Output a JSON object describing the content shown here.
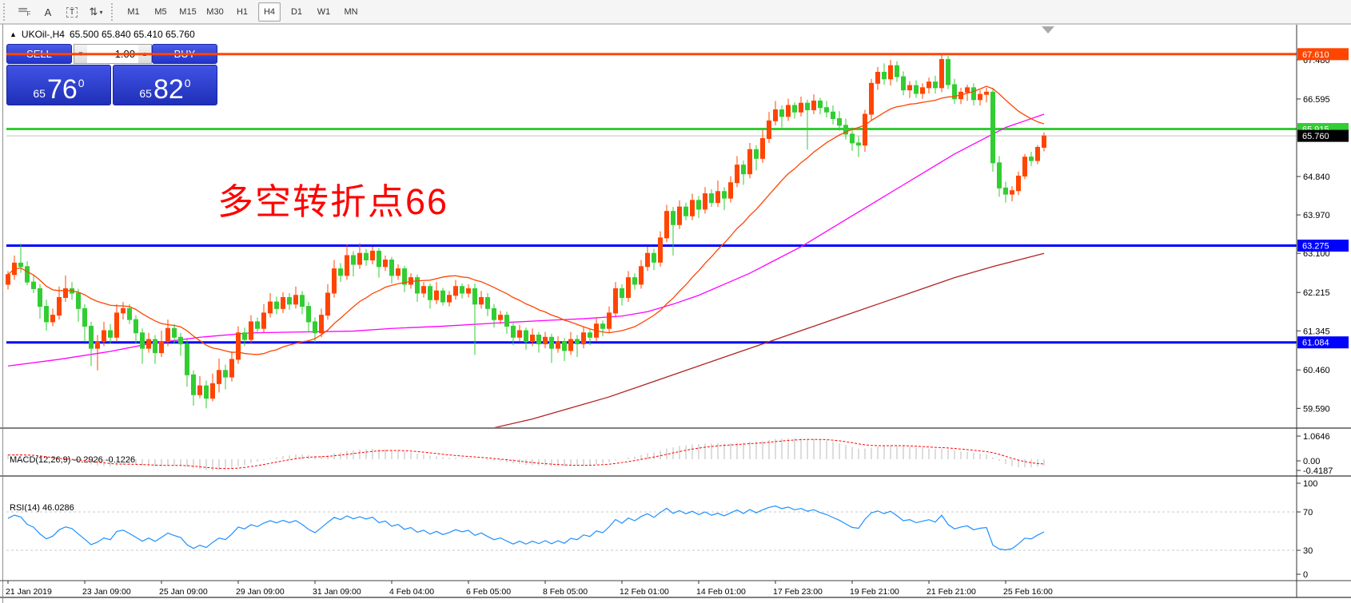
{
  "toolbar": {
    "tools": [
      {
        "name": "fibonacci-retracement",
        "glyph": "F"
      },
      {
        "name": "text-annotation",
        "glyph": "A"
      },
      {
        "name": "text-label",
        "glyph": "T"
      },
      {
        "name": "arrow-objects",
        "glyph": "⇅",
        "caret": "▾"
      }
    ],
    "timeframes": [
      "M1",
      "M5",
      "M15",
      "M30",
      "H1",
      "H4",
      "D1",
      "W1",
      "MN"
    ],
    "active_timeframe": "H4"
  },
  "chart": {
    "collapse_arrow": "▲",
    "symbol_period": "UKOil-,H4",
    "ohlc_readout": "65.500 65.840 65.410 65.760"
  },
  "trade_panel": {
    "sell_label": "SELL",
    "buy_label": "BUY",
    "volume": "1.00",
    "spin_down": "▼",
    "spin_up": "▲",
    "sell_price": {
      "prefix": "65",
      "pips": "76",
      "pipette": "0"
    },
    "buy_price": {
      "prefix": "65",
      "pips": "82",
      "pipette": "0"
    }
  },
  "annotation": {
    "text": "多空转折点66",
    "color": "#ff0000"
  },
  "macd_panel": {
    "label": "MACD(12,26,9) -0.2926 -0.1226",
    "params": "12,26,9",
    "macd_value": "-0.2926",
    "signal_value": "-0.1226",
    "axis_labels": {
      "max": "1.0646",
      "zero": "0.00",
      "min": "-0.4187"
    },
    "histogram_color": "#bbbbbb",
    "signal_color": "#ff0000"
  },
  "rsi_panel": {
    "label": "RSI(14) 46.0286",
    "period": "14",
    "value": "46.0286",
    "axis_labels": [
      "100",
      "70",
      "30",
      "0"
    ],
    "levels": [
      70,
      30
    ],
    "line_color": "#1e90ff"
  },
  "chart_data": {
    "type": "candlestick",
    "symbol": "UKOil-",
    "timeframe": "H4",
    "bull_color": "#ff4500",
    "bear_color": "#32cd32",
    "price_ticks": [
      "67.480",
      "66.595",
      "64.840",
      "63.970",
      "63.100",
      "62.215",
      "61.345",
      "60.460",
      "59.590"
    ],
    "h_lines": [
      {
        "price": 67.61,
        "label": "67.610",
        "color": "#ff4500",
        "width": 3
      },
      {
        "price": 65.915,
        "label": "65.915",
        "color": "#32cd32",
        "width": 3
      },
      {
        "price": 63.275,
        "label": "63.275",
        "color": "#0000ff",
        "width": 3
      },
      {
        "price": 61.084,
        "label": "61.084",
        "color": "#0000ff",
        "width": 3
      }
    ],
    "current_price": {
      "price": 65.76,
      "label": "65.760",
      "line_color": "#c0c0c0",
      "badge_color": "#000000"
    },
    "time_labels": [
      {
        "i": 0,
        "t": "21 Jan 2019"
      },
      {
        "i": 12,
        "t": "23 Jan 09:00"
      },
      {
        "i": 24,
        "t": "25 Jan 09:00"
      },
      {
        "i": 36,
        "t": "29 Jan 09:00"
      },
      {
        "i": 48,
        "t": "31 Jan 09:00"
      },
      {
        "i": 60,
        "t": "4 Feb 04:00"
      },
      {
        "i": 72,
        "t": "6 Feb 05:00"
      },
      {
        "i": 84,
        "t": "8 Feb 05:00"
      },
      {
        "i": 96,
        "t": "12 Feb 01:00"
      },
      {
        "i": 108,
        "t": "14 Feb 01:00"
      },
      {
        "i": 120,
        "t": "17 Feb 23:00"
      },
      {
        "i": 132,
        "t": "19 Feb 21:00"
      },
      {
        "i": 144,
        "t": "21 Feb 21:00"
      },
      {
        "i": 156,
        "t": "25 Feb 16:00"
      }
    ],
    "moving_averages": {
      "fast": {
        "type": "sma",
        "period": 20,
        "color": "#ff4500"
      },
      "mid": {
        "color": "#ff00ff",
        "points": [
          [
            0,
            60.55
          ],
          [
            8,
            60.7
          ],
          [
            16,
            60.88
          ],
          [
            22,
            61.05
          ],
          [
            30,
            61.2
          ],
          [
            38,
            61.3
          ],
          [
            46,
            61.32
          ],
          [
            54,
            61.34
          ],
          [
            60,
            61.4
          ],
          [
            68,
            61.45
          ],
          [
            76,
            61.52
          ],
          [
            84,
            61.58
          ],
          [
            90,
            61.62
          ],
          [
            96,
            61.68
          ],
          [
            100,
            61.78
          ],
          [
            104,
            61.95
          ],
          [
            108,
            62.15
          ],
          [
            112,
            62.4
          ],
          [
            116,
            62.65
          ],
          [
            120,
            62.95
          ],
          [
            124,
            63.25
          ],
          [
            128,
            63.6
          ],
          [
            132,
            63.95
          ],
          [
            136,
            64.3
          ],
          [
            140,
            64.65
          ],
          [
            144,
            65.0
          ],
          [
            148,
            65.35
          ],
          [
            152,
            65.65
          ],
          [
            156,
            65.95
          ],
          [
            159,
            66.1
          ],
          [
            162,
            66.25
          ]
        ]
      },
      "slow": {
        "color": "#b22222",
        "points": [
          [
            76,
            59.15
          ],
          [
            82,
            59.35
          ],
          [
            88,
            59.6
          ],
          [
            94,
            59.85
          ],
          [
            100,
            60.15
          ],
          [
            106,
            60.45
          ],
          [
            112,
            60.75
          ],
          [
            118,
            61.05
          ],
          [
            124,
            61.35
          ],
          [
            130,
            61.65
          ],
          [
            136,
            61.95
          ],
          [
            142,
            62.25
          ],
          [
            148,
            62.55
          ],
          [
            154,
            62.8
          ],
          [
            158,
            62.95
          ],
          [
            162,
            63.1
          ]
        ]
      }
    },
    "candles": [
      [
        62.4,
        62.7,
        62.28,
        62.62
      ],
      [
        62.62,
        63.05,
        62.5,
        62.88
      ],
      [
        62.88,
        63.32,
        62.66,
        62.8
      ],
      [
        62.8,
        62.92,
        62.38,
        62.45
      ],
      [
        62.45,
        62.6,
        62.2,
        62.3
      ],
      [
        62.3,
        62.4,
        61.62,
        61.9
      ],
      [
        61.9,
        62.05,
        61.35,
        61.55
      ],
      [
        61.55,
        61.85,
        61.45,
        61.7
      ],
      [
        61.7,
        62.35,
        61.6,
        62.1
      ],
      [
        62.1,
        62.6,
        62.0,
        62.3
      ],
      [
        62.3,
        62.45,
        62.05,
        62.2
      ],
      [
        62.2,
        62.3,
        61.55,
        61.85
      ],
      [
        61.85,
        61.95,
        61.1,
        61.45
      ],
      [
        61.45,
        61.55,
        60.55,
        60.95
      ],
      [
        60.95,
        61.25,
        60.45,
        61.1
      ],
      [
        61.1,
        61.55,
        61.0,
        61.35
      ],
      [
        61.35,
        61.5,
        61.05,
        61.2
      ],
      [
        61.2,
        61.95,
        61.1,
        61.75
      ],
      [
        61.75,
        62.0,
        61.6,
        61.85
      ],
      [
        61.85,
        61.95,
        61.5,
        61.6
      ],
      [
        61.6,
        61.7,
        61.05,
        61.3
      ],
      [
        61.3,
        61.4,
        60.6,
        60.95
      ],
      [
        60.95,
        61.3,
        60.85,
        61.15
      ],
      [
        61.15,
        61.25,
        60.6,
        60.85
      ],
      [
        60.85,
        61.35,
        60.75,
        61.1
      ],
      [
        61.1,
        61.6,
        61.0,
        61.4
      ],
      [
        61.4,
        61.5,
        61.05,
        61.2
      ],
      [
        61.2,
        61.3,
        60.78,
        61.05
      ],
      [
        61.05,
        61.15,
        60.08,
        60.35
      ],
      [
        60.35,
        60.45,
        59.65,
        59.9
      ],
      [
        59.9,
        60.32,
        59.82,
        60.1
      ],
      [
        60.1,
        60.22,
        59.59,
        59.82
      ],
      [
        59.82,
        60.38,
        59.75,
        60.15
      ],
      [
        60.15,
        60.72,
        59.95,
        60.45
      ],
      [
        60.45,
        60.58,
        60.02,
        60.3
      ],
      [
        60.3,
        60.88,
        60.2,
        60.7
      ],
      [
        60.7,
        61.45,
        60.6,
        61.3
      ],
      [
        61.3,
        61.42,
        61.0,
        61.15
      ],
      [
        61.15,
        61.7,
        61.05,
        61.55
      ],
      [
        61.55,
        61.65,
        61.28,
        61.4
      ],
      [
        61.4,
        61.95,
        61.3,
        61.75
      ],
      [
        61.75,
        62.2,
        61.65,
        62.0
      ],
      [
        62.0,
        62.12,
        61.72,
        61.85
      ],
      [
        61.85,
        62.22,
        61.75,
        62.1
      ],
      [
        62.1,
        62.2,
        61.82,
        61.95
      ],
      [
        61.95,
        62.35,
        61.85,
        62.15
      ],
      [
        62.15,
        62.25,
        61.72,
        61.9
      ],
      [
        61.9,
        62.0,
        61.32,
        61.55
      ],
      [
        61.55,
        61.65,
        61.08,
        61.3
      ],
      [
        61.3,
        61.85,
        61.2,
        61.7
      ],
      [
        61.7,
        62.4,
        61.6,
        62.2
      ],
      [
        62.2,
        62.95,
        62.1,
        62.75
      ],
      [
        62.75,
        62.88,
        62.45,
        62.6
      ],
      [
        62.6,
        63.3,
        62.5,
        63.05
      ],
      [
        63.05,
        63.15,
        62.58,
        62.85
      ],
      [
        62.85,
        63.33,
        62.75,
        63.1
      ],
      [
        63.1,
        63.2,
        62.82,
        62.95
      ],
      [
        62.95,
        63.25,
        62.85,
        63.15
      ],
      [
        63.15,
        63.22,
        62.55,
        62.8
      ],
      [
        62.8,
        63.05,
        62.7,
        62.95
      ],
      [
        62.95,
        63.02,
        62.42,
        62.6
      ],
      [
        62.6,
        62.85,
        62.5,
        62.75
      ],
      [
        62.75,
        62.82,
        62.22,
        62.4
      ],
      [
        62.4,
        62.65,
        62.3,
        62.55
      ],
      [
        62.55,
        62.62,
        62.0,
        62.2
      ],
      [
        62.2,
        62.45,
        62.1,
        62.35
      ],
      [
        62.35,
        62.42,
        61.85,
        62.05
      ],
      [
        62.05,
        62.45,
        61.95,
        62.25
      ],
      [
        62.25,
        62.32,
        61.92,
        62.0
      ],
      [
        62.0,
        62.25,
        61.9,
        62.15
      ],
      [
        62.15,
        62.5,
        62.05,
        62.35
      ],
      [
        62.35,
        62.42,
        62.08,
        62.2
      ],
      [
        62.2,
        62.4,
        62.1,
        62.3
      ],
      [
        62.3,
        62.42,
        60.8,
        61.95
      ],
      [
        61.95,
        62.25,
        61.85,
        62.1
      ],
      [
        62.1,
        62.2,
        61.68,
        61.85
      ],
      [
        61.85,
        61.95,
        61.42,
        61.6
      ],
      [
        61.6,
        61.8,
        61.5,
        61.7
      ],
      [
        61.7,
        61.78,
        61.28,
        61.45
      ],
      [
        61.45,
        61.55,
        61.02,
        61.2
      ],
      [
        61.2,
        61.48,
        61.1,
        61.35
      ],
      [
        61.35,
        61.42,
        60.92,
        61.1
      ],
      [
        61.1,
        61.4,
        61.0,
        61.25
      ],
      [
        61.25,
        61.32,
        60.85,
        61.05
      ],
      [
        61.05,
        61.32,
        60.95,
        61.2
      ],
      [
        61.2,
        61.28,
        60.62,
        60.95
      ],
      [
        60.95,
        61.22,
        60.85,
        61.1
      ],
      [
        61.1,
        61.18,
        60.66,
        60.9
      ],
      [
        60.9,
        61.32,
        60.8,
        61.15
      ],
      [
        61.15,
        61.25,
        60.75,
        61.05
      ],
      [
        61.05,
        61.45,
        60.95,
        61.3
      ],
      [
        61.3,
        61.38,
        61.02,
        61.2
      ],
      [
        61.2,
        61.65,
        61.1,
        61.5
      ],
      [
        61.5,
        61.58,
        61.22,
        61.4
      ],
      [
        61.4,
        61.9,
        61.3,
        61.75
      ],
      [
        61.75,
        62.45,
        61.65,
        62.3
      ],
      [
        62.3,
        62.4,
        61.92,
        62.1
      ],
      [
        62.1,
        62.7,
        62.0,
        62.55
      ],
      [
        62.55,
        62.65,
        62.28,
        62.4
      ],
      [
        62.4,
        62.95,
        62.3,
        62.8
      ],
      [
        62.8,
        63.25,
        62.7,
        63.1
      ],
      [
        63.1,
        63.2,
        62.72,
        62.9
      ],
      [
        62.9,
        63.6,
        62.8,
        63.45
      ],
      [
        63.45,
        64.2,
        63.35,
        64.05
      ],
      [
        64.05,
        64.15,
        63.05,
        63.75
      ],
      [
        63.75,
        64.3,
        63.65,
        64.15
      ],
      [
        64.15,
        64.25,
        63.85,
        63.95
      ],
      [
        63.95,
        64.45,
        63.85,
        64.3
      ],
      [
        64.3,
        64.4,
        63.9,
        64.1
      ],
      [
        64.1,
        64.6,
        64.0,
        64.45
      ],
      [
        64.45,
        64.55,
        64.15,
        64.25
      ],
      [
        64.25,
        64.75,
        64.15,
        64.5
      ],
      [
        64.5,
        64.6,
        64.08,
        64.35
      ],
      [
        64.35,
        64.85,
        64.25,
        64.7
      ],
      [
        64.7,
        65.3,
        64.6,
        65.1
      ],
      [
        65.1,
        65.2,
        64.65,
        64.9
      ],
      [
        64.9,
        65.6,
        64.8,
        65.45
      ],
      [
        65.45,
        65.55,
        64.98,
        65.25
      ],
      [
        65.25,
        65.9,
        65.15,
        65.7
      ],
      [
        65.7,
        66.3,
        65.6,
        66.1
      ],
      [
        66.1,
        66.55,
        66.0,
        66.35
      ],
      [
        66.35,
        66.45,
        65.95,
        66.2
      ],
      [
        66.2,
        66.6,
        66.1,
        66.45
      ],
      [
        66.45,
        66.52,
        66.15,
        66.3
      ],
      [
        66.3,
        66.65,
        66.2,
        66.5
      ],
      [
        66.5,
        66.58,
        65.45,
        66.35
      ],
      [
        66.35,
        66.7,
        66.25,
        66.55
      ],
      [
        66.55,
        66.62,
        66.25,
        66.4
      ],
      [
        66.4,
        66.55,
        66.18,
        66.3
      ],
      [
        66.3,
        66.45,
        66.02,
        66.15
      ],
      [
        66.15,
        66.32,
        65.88,
        66.0
      ],
      [
        66.0,
        66.15,
        65.68,
        65.8
      ],
      [
        65.8,
        65.95,
        65.42,
        65.6
      ],
      [
        65.6,
        65.75,
        65.28,
        65.55
      ],
      [
        65.55,
        66.35,
        65.4,
        66.25
      ],
      [
        66.25,
        67.05,
        66.1,
        66.95
      ],
      [
        66.95,
        67.32,
        66.8,
        67.2
      ],
      [
        67.2,
        67.4,
        66.92,
        67.05
      ],
      [
        67.05,
        67.48,
        66.9,
        67.35
      ],
      [
        67.35,
        67.45,
        66.98,
        67.1
      ],
      [
        67.1,
        67.22,
        66.68,
        66.8
      ],
      [
        66.8,
        67.0,
        66.62,
        66.9
      ],
      [
        66.9,
        67.02,
        66.62,
        66.72
      ],
      [
        66.72,
        66.95,
        66.6,
        66.85
      ],
      [
        66.85,
        67.08,
        66.72,
        66.98
      ],
      [
        66.98,
        67.12,
        66.72,
        66.85
      ],
      [
        66.85,
        67.62,
        66.75,
        67.49
      ],
      [
        67.49,
        67.57,
        66.82,
        66.92
      ],
      [
        66.92,
        67.05,
        66.48,
        66.6
      ],
      [
        66.6,
        66.85,
        66.48,
        66.75
      ],
      [
        66.75,
        66.92,
        66.55,
        66.85
      ],
      [
        66.85,
        66.95,
        66.45,
        66.58
      ],
      [
        66.58,
        66.8,
        66.45,
        66.7
      ],
      [
        66.7,
        66.85,
        66.52,
        66.75
      ],
      [
        66.75,
        66.85,
        64.95,
        65.15
      ],
      [
        65.15,
        65.3,
        64.38,
        64.58
      ],
      [
        64.58,
        64.72,
        64.25,
        64.44
      ],
      [
        64.44,
        64.62,
        64.28,
        64.52
      ],
      [
        64.52,
        64.95,
        64.42,
        64.85
      ],
      [
        64.85,
        65.35,
        64.78,
        65.28
      ],
      [
        65.28,
        65.4,
        65.08,
        65.2
      ],
      [
        65.2,
        65.55,
        65.12,
        65.5
      ],
      [
        65.5,
        65.84,
        65.41,
        65.76
      ]
    ]
  }
}
